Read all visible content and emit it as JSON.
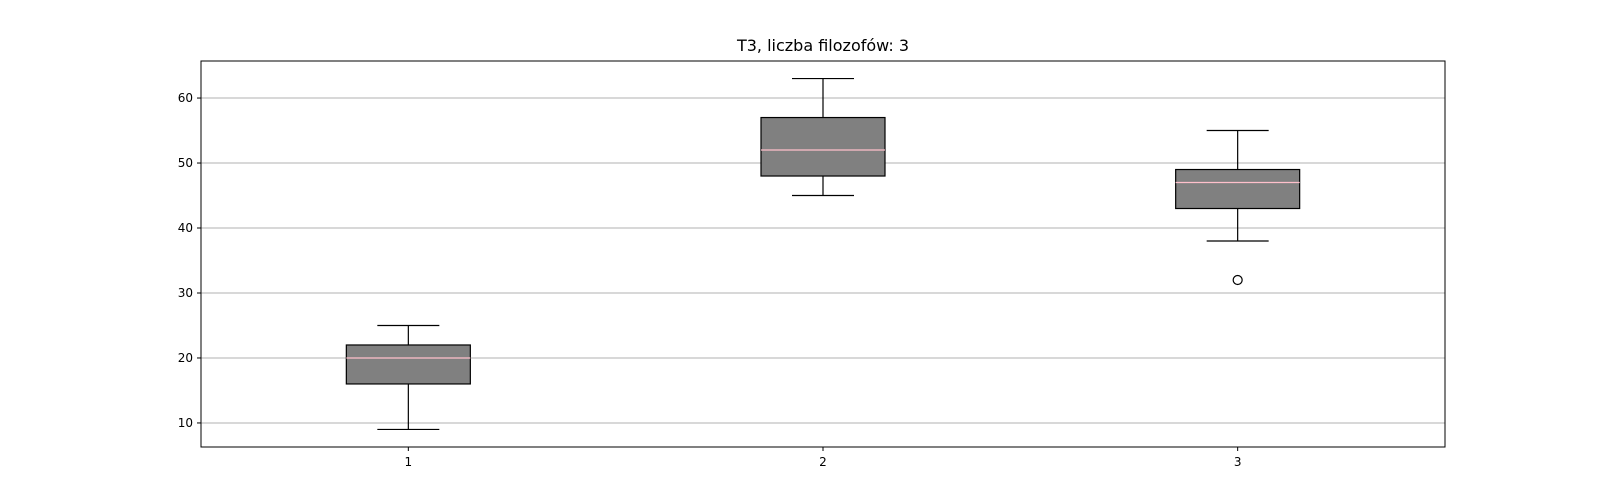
{
  "chart_data": {
    "type": "boxplot",
    "title": "T3, liczba filozofów: 3",
    "xlabel": "",
    "ylabel": "",
    "categories": [
      "1",
      "2",
      "3"
    ],
    "boxes": [
      {
        "category": "1",
        "whisker_low": 9,
        "q1": 16,
        "median": 20,
        "q3": 22,
        "whisker_high": 25,
        "outliers": []
      },
      {
        "category": "2",
        "whisker_low": 45,
        "q1": 48,
        "median": 52,
        "q3": 57,
        "whisker_high": 63,
        "outliers": []
      },
      {
        "category": "3",
        "whisker_low": 38,
        "q1": 43,
        "median": 47,
        "q3": 49,
        "whisker_high": 55,
        "outliers": [
          32
        ]
      }
    ],
    "yticks": [
      10,
      20,
      30,
      40,
      50,
      60
    ],
    "ylim": [
      6.3,
      65.7
    ],
    "xlim": [
      0.5,
      3.5
    ],
    "grid": "horizontal",
    "legend": "none",
    "colors": {
      "box_fill": "#808080",
      "box_edge": "#000000",
      "median": "#ffc0cb",
      "grid": "#b0b0b0"
    }
  }
}
